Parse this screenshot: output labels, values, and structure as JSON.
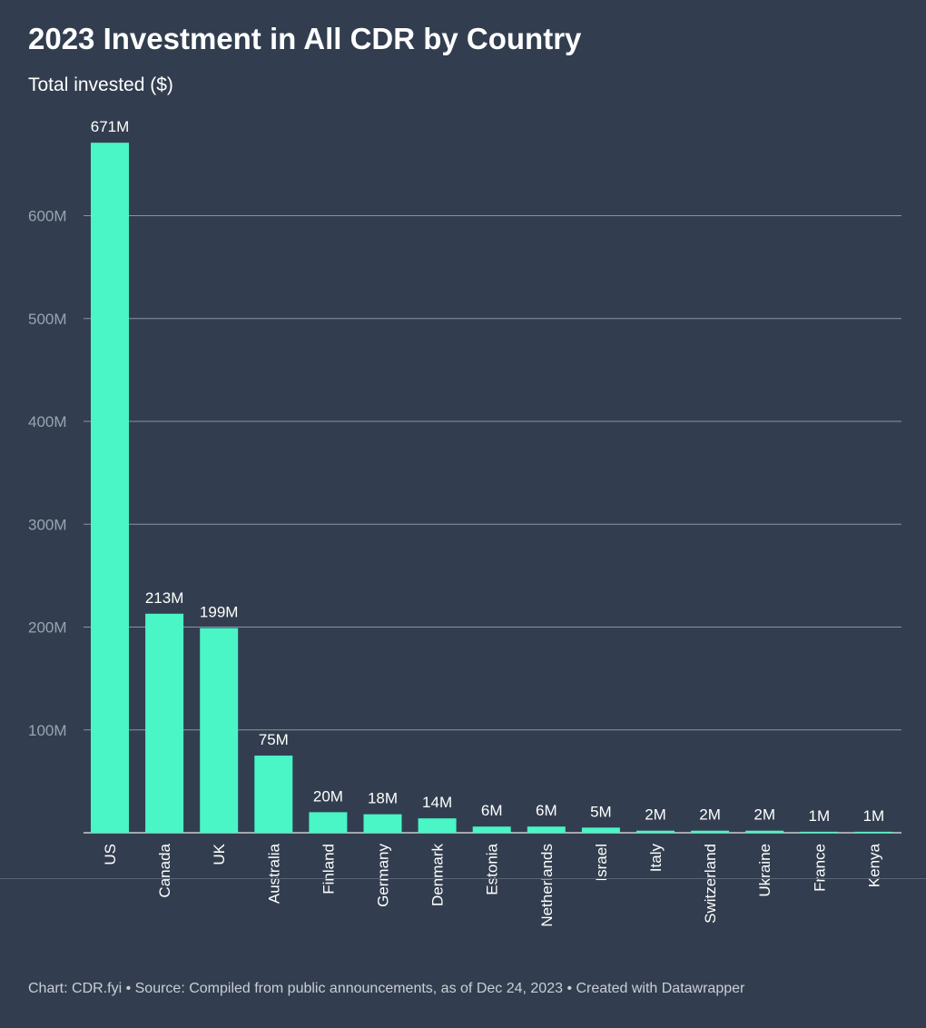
{
  "header": {
    "title": "2023 Investment in All CDR by Country",
    "subtitle": "Total invested ($)"
  },
  "footer": {
    "text": "Chart: CDR.fyi • Source: Compiled from public announcements, as of Dec 24, 2023 • Created with Datawrapper"
  },
  "colors": {
    "background": "#323e4f",
    "bar": "#4af5c6",
    "grid": "#8a93a0"
  },
  "chart_data": {
    "type": "bar",
    "title": "2023 Investment in All CDR by Country",
    "ylabel": "Total invested ($)",
    "xlabel": "",
    "unit": "M",
    "ylim": [
      0,
      700
    ],
    "yticks": [
      100,
      200,
      300,
      400,
      500,
      600
    ],
    "ytick_labels": [
      "100M",
      "200M",
      "300M",
      "400M",
      "500M",
      "600M"
    ],
    "grid": true,
    "categories": [
      "US",
      "Canada",
      "UK",
      "Australia",
      "Finland",
      "Germany",
      "Denmark",
      "Estonia",
      "Netherlands",
      "Israel",
      "Italy",
      "Switzerland",
      "Ukraine",
      "France",
      "Kenya"
    ],
    "values": [
      671,
      213,
      199,
      75,
      20,
      18,
      14,
      6,
      6,
      5,
      2,
      2,
      2,
      1,
      1
    ],
    "value_labels": [
      "671M",
      "213M",
      "199M",
      "75M",
      "20M",
      "18M",
      "14M",
      "6M",
      "6M",
      "5M",
      "2M",
      "2M",
      "2M",
      "1M",
      "1M"
    ]
  }
}
